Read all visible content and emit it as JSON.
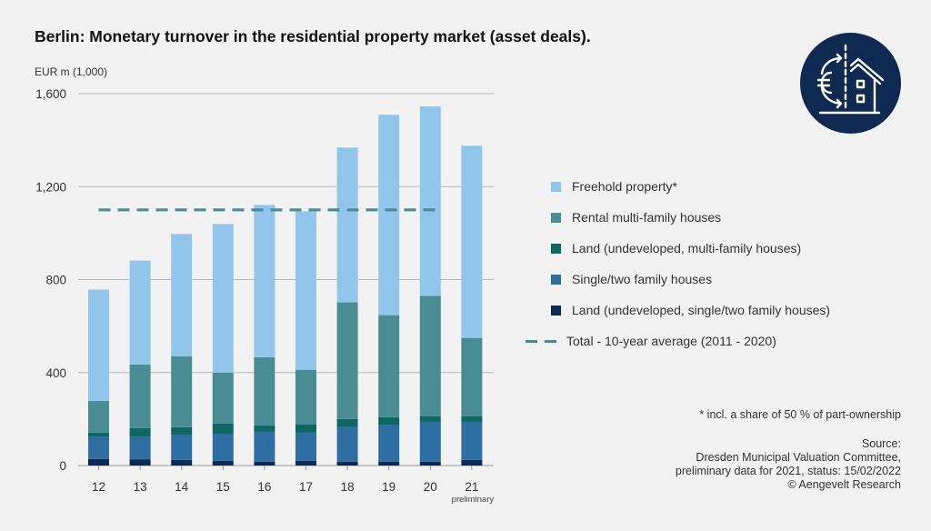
{
  "chart_data": {
    "type": "bar",
    "stacked": true,
    "title": "Berlin: Monetary turnover in the residential property market (asset deals).",
    "ylabel": "EUR m (1,000)",
    "xlabel": "",
    "ylim": [
      0,
      1600
    ],
    "yticks": [
      0,
      400,
      800,
      1200,
      1600
    ],
    "ytick_labels": [
      "0",
      "400",
      "800",
      "1,200",
      "1,600"
    ],
    "grid": true,
    "categories": [
      "12",
      "13",
      "14",
      "15",
      "16",
      "17",
      "18",
      "19",
      "20",
      "21"
    ],
    "category_sublabels": {
      "21": "preliminary"
    },
    "series": [
      {
        "name": "Land (undeveloped, single/two family houses)",
        "color": "#0d2a52",
        "values": [
          28,
          27,
          24,
          20,
          16,
          20,
          16,
          16,
          16,
          24
        ]
      },
      {
        "name": "Single/two family houses",
        "color": "#2f6ea3",
        "values": [
          97,
          98,
          109,
          117,
          129,
          121,
          149,
          160,
          172,
          164
        ]
      },
      {
        "name": "Land (undeveloped, multi-family houses)",
        "color": "#0f6763",
        "values": [
          16,
          36,
          32,
          43,
          27,
          35,
          35,
          32,
          24,
          24
        ]
      },
      {
        "name": "Rental multi-family houses",
        "color": "#4a8c93",
        "values": [
          137,
          274,
          305,
          220,
          294,
          236,
          502,
          439,
          518,
          337
        ]
      },
      {
        "name": "Freehold property*",
        "color": "#92c5eb",
        "values": [
          479,
          447,
          526,
          639,
          655,
          682,
          666,
          862,
          815,
          827
        ]
      }
    ],
    "totals": [
      757,
      882,
      996,
      1039,
      1121,
      1094,
      1368,
      1509,
      1545,
      1376
    ],
    "reference_line": {
      "name": "Total - 10-year average (2011 - 2020)",
      "value": 1100,
      "from": "12",
      "to": "20",
      "color": "#4a8c93",
      "style": "dashed"
    },
    "legend_position": "right"
  },
  "header": {
    "title": "Berlin: Monetary turnover in the residential property market (asset deals).",
    "unit_label": "EUR m (1,000)",
    "logo_icon": "euro-house-exchange-icon"
  },
  "legend": [
    {
      "label": "Freehold property*",
      "color": "#92c5eb",
      "kind": "swatch"
    },
    {
      "label": "Rental multi-family houses",
      "color": "#4a8c93",
      "kind": "swatch"
    },
    {
      "label": "Land (undeveloped, multi-family houses)",
      "color": "#0f6763",
      "kind": "swatch"
    },
    {
      "label": "Single/two family houses",
      "color": "#2f6ea3",
      "kind": "swatch"
    },
    {
      "label": "Land (undeveloped, single/two family houses)",
      "color": "#0d2a52",
      "kind": "swatch"
    },
    {
      "label": "Total - 10-year average (2011 - 2020)",
      "color": "#4a8c93",
      "kind": "dash"
    }
  ],
  "notes": {
    "footnote": "* incl. a share of 50 % of part-ownership",
    "source_lines": [
      "Source:",
      "Dresden Municipal Valuation Committee,",
      "preliminary data for 2021, status: 15/02/2022",
      "© Aengevelt Research"
    ]
  },
  "colors": {
    "background": "#f2f2f2",
    "logo_bg": "#0e2a52",
    "gridline": "#b8b8b8"
  }
}
